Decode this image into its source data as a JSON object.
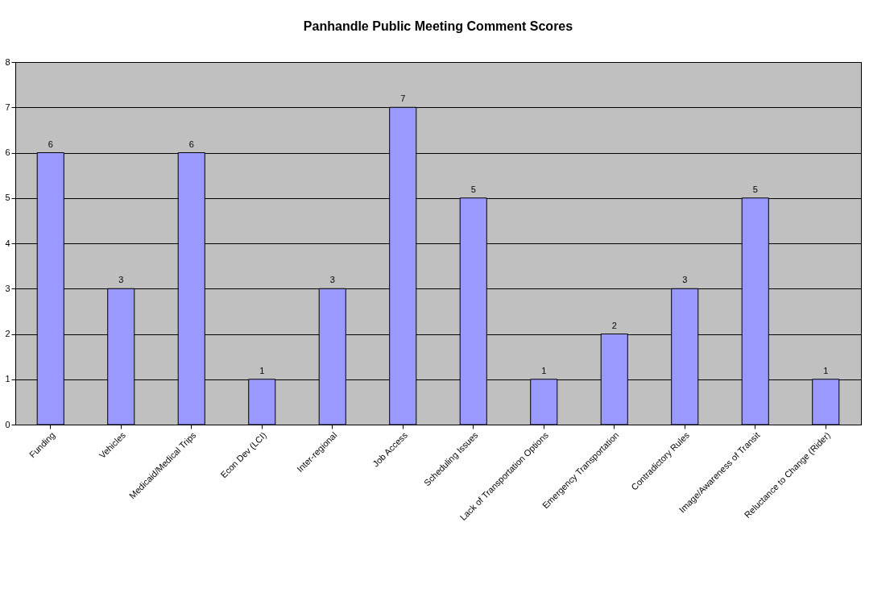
{
  "chart_data": {
    "type": "bar",
    "title": "Panhandle Public Meeting Comment Scores",
    "categories": [
      "Funding",
      "Vehicles",
      "Medicaid/Medical Trips",
      "Econ Dev (LCI)",
      "Inter-regional",
      "Job Access",
      "Scheduling Issues",
      "Lack of Transportation Options",
      "Emergency Transportation",
      "Contradictory Rules",
      "Image/Awareness of Transit",
      "Reluctance to Change (Rider)"
    ],
    "values": [
      6,
      3,
      6,
      1,
      3,
      7,
      5,
      1,
      2,
      3,
      5,
      1
    ],
    "color": "#9999ff",
    "ylim": [
      0,
      8
    ],
    "yticks": [
      0,
      1,
      2,
      3,
      4,
      5,
      6,
      7,
      8
    ],
    "grid": "y",
    "data_labels": true
  }
}
